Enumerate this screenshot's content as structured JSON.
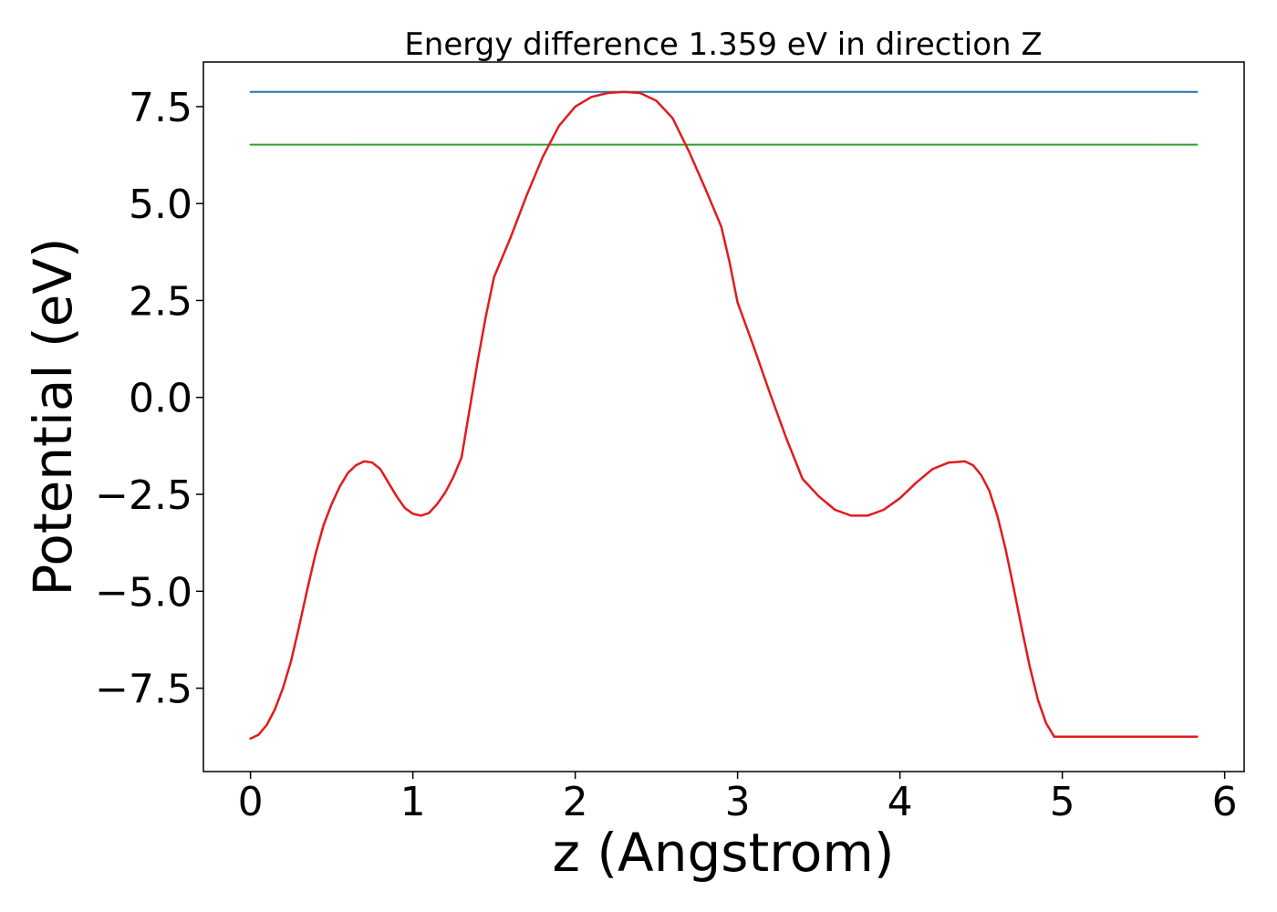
{
  "chart_data": {
    "type": "line",
    "title": "Energy difference 1.359 eV in direction Z",
    "xlabel": "z (Angstrom)",
    "ylabel": "Potential (eV)",
    "xlim": [
      -0.29,
      6.12
    ],
    "ylim": [
      -9.65,
      8.65
    ],
    "xticks": [
      0,
      1,
      2,
      3,
      4,
      5,
      6
    ],
    "xtick_labels": [
      "0",
      "1",
      "2",
      "3",
      "4",
      "5",
      "6"
    ],
    "yticks": [
      -7.5,
      -5.0,
      -2.5,
      0.0,
      2.5,
      5.0,
      7.5
    ],
    "ytick_labels": [
      "−7.5",
      "−5.0",
      "−2.5",
      "0.0",
      "2.5",
      "5.0",
      "7.5"
    ],
    "grid": false,
    "colors": {
      "potential": "#e31a1c",
      "max_level": "#1f77b4",
      "reference_level": "#2ca02c"
    },
    "series": [
      {
        "key": "potential",
        "x": [
          0.0,
          0.05,
          0.1,
          0.15,
          0.2,
          0.25,
          0.3,
          0.35,
          0.4,
          0.45,
          0.5,
          0.55,
          0.6,
          0.65,
          0.7,
          0.75,
          0.8,
          0.85,
          0.9,
          0.95,
          1.0,
          1.05,
          1.1,
          1.15,
          1.2,
          1.25,
          1.3,
          1.35,
          1.4,
          1.45,
          1.5,
          1.6,
          1.7,
          1.8,
          1.9,
          2.0,
          2.1,
          2.2,
          2.3,
          2.4,
          2.5,
          2.6,
          2.7,
          2.8,
          2.9,
          2.95,
          3.0,
          3.1,
          3.2,
          3.3,
          3.4,
          3.5,
          3.6,
          3.7,
          3.8,
          3.9,
          4.0,
          4.1,
          4.2,
          4.3,
          4.4,
          4.45,
          4.5,
          4.55,
          4.6,
          4.65,
          4.7,
          4.75,
          4.8,
          4.85,
          4.9,
          4.95,
          5.0,
          5.05,
          5.1,
          5.15,
          5.2,
          5.25,
          5.3,
          5.35,
          5.4,
          5.45,
          5.5,
          5.55,
          5.6,
          5.65,
          5.7,
          5.75,
          5.8,
          5.83
        ],
        "y": [
          -8.8,
          -8.7,
          -8.45,
          -8.05,
          -7.5,
          -6.8,
          -5.9,
          -4.95,
          -4.05,
          -3.3,
          -2.75,
          -2.3,
          -1.95,
          -1.75,
          -1.65,
          -1.68,
          -1.85,
          -2.2,
          -2.55,
          -2.85,
          -3.0,
          -3.05,
          -2.98,
          -2.75,
          -2.45,
          -2.05,
          -1.55,
          -0.3,
          0.95,
          2.1,
          3.1,
          4.1,
          5.2,
          6.2,
          7.0,
          7.5,
          7.75,
          7.85,
          7.88,
          7.85,
          7.65,
          7.2,
          6.35,
          5.4,
          4.4,
          3.5,
          2.45,
          1.3,
          0.1,
          -1.05,
          -2.1,
          -2.55,
          -2.9,
          -3.05,
          -3.05,
          -2.9,
          -2.6,
          -2.2,
          -1.85,
          -1.68,
          -1.65,
          -1.75,
          -2.0,
          -2.4,
          -3.05,
          -3.9,
          -4.9,
          -5.95,
          -6.95,
          -7.8,
          -8.4,
          -8.75,
          -8.75,
          -8.75,
          -8.75,
          -8.75,
          -8.75,
          -8.75,
          -8.75,
          -8.75,
          -8.75,
          -8.75,
          -8.75,
          -8.75,
          -8.75,
          -8.75,
          -8.75,
          -8.75,
          -8.75,
          -8.75
        ]
      },
      {
        "key": "max_level",
        "x": [
          0.0,
          5.83
        ],
        "y": [
          7.88,
          7.88
        ]
      },
      {
        "key": "reference_level",
        "x": [
          0.0,
          5.83
        ],
        "y": [
          6.52,
          6.52
        ]
      }
    ]
  }
}
